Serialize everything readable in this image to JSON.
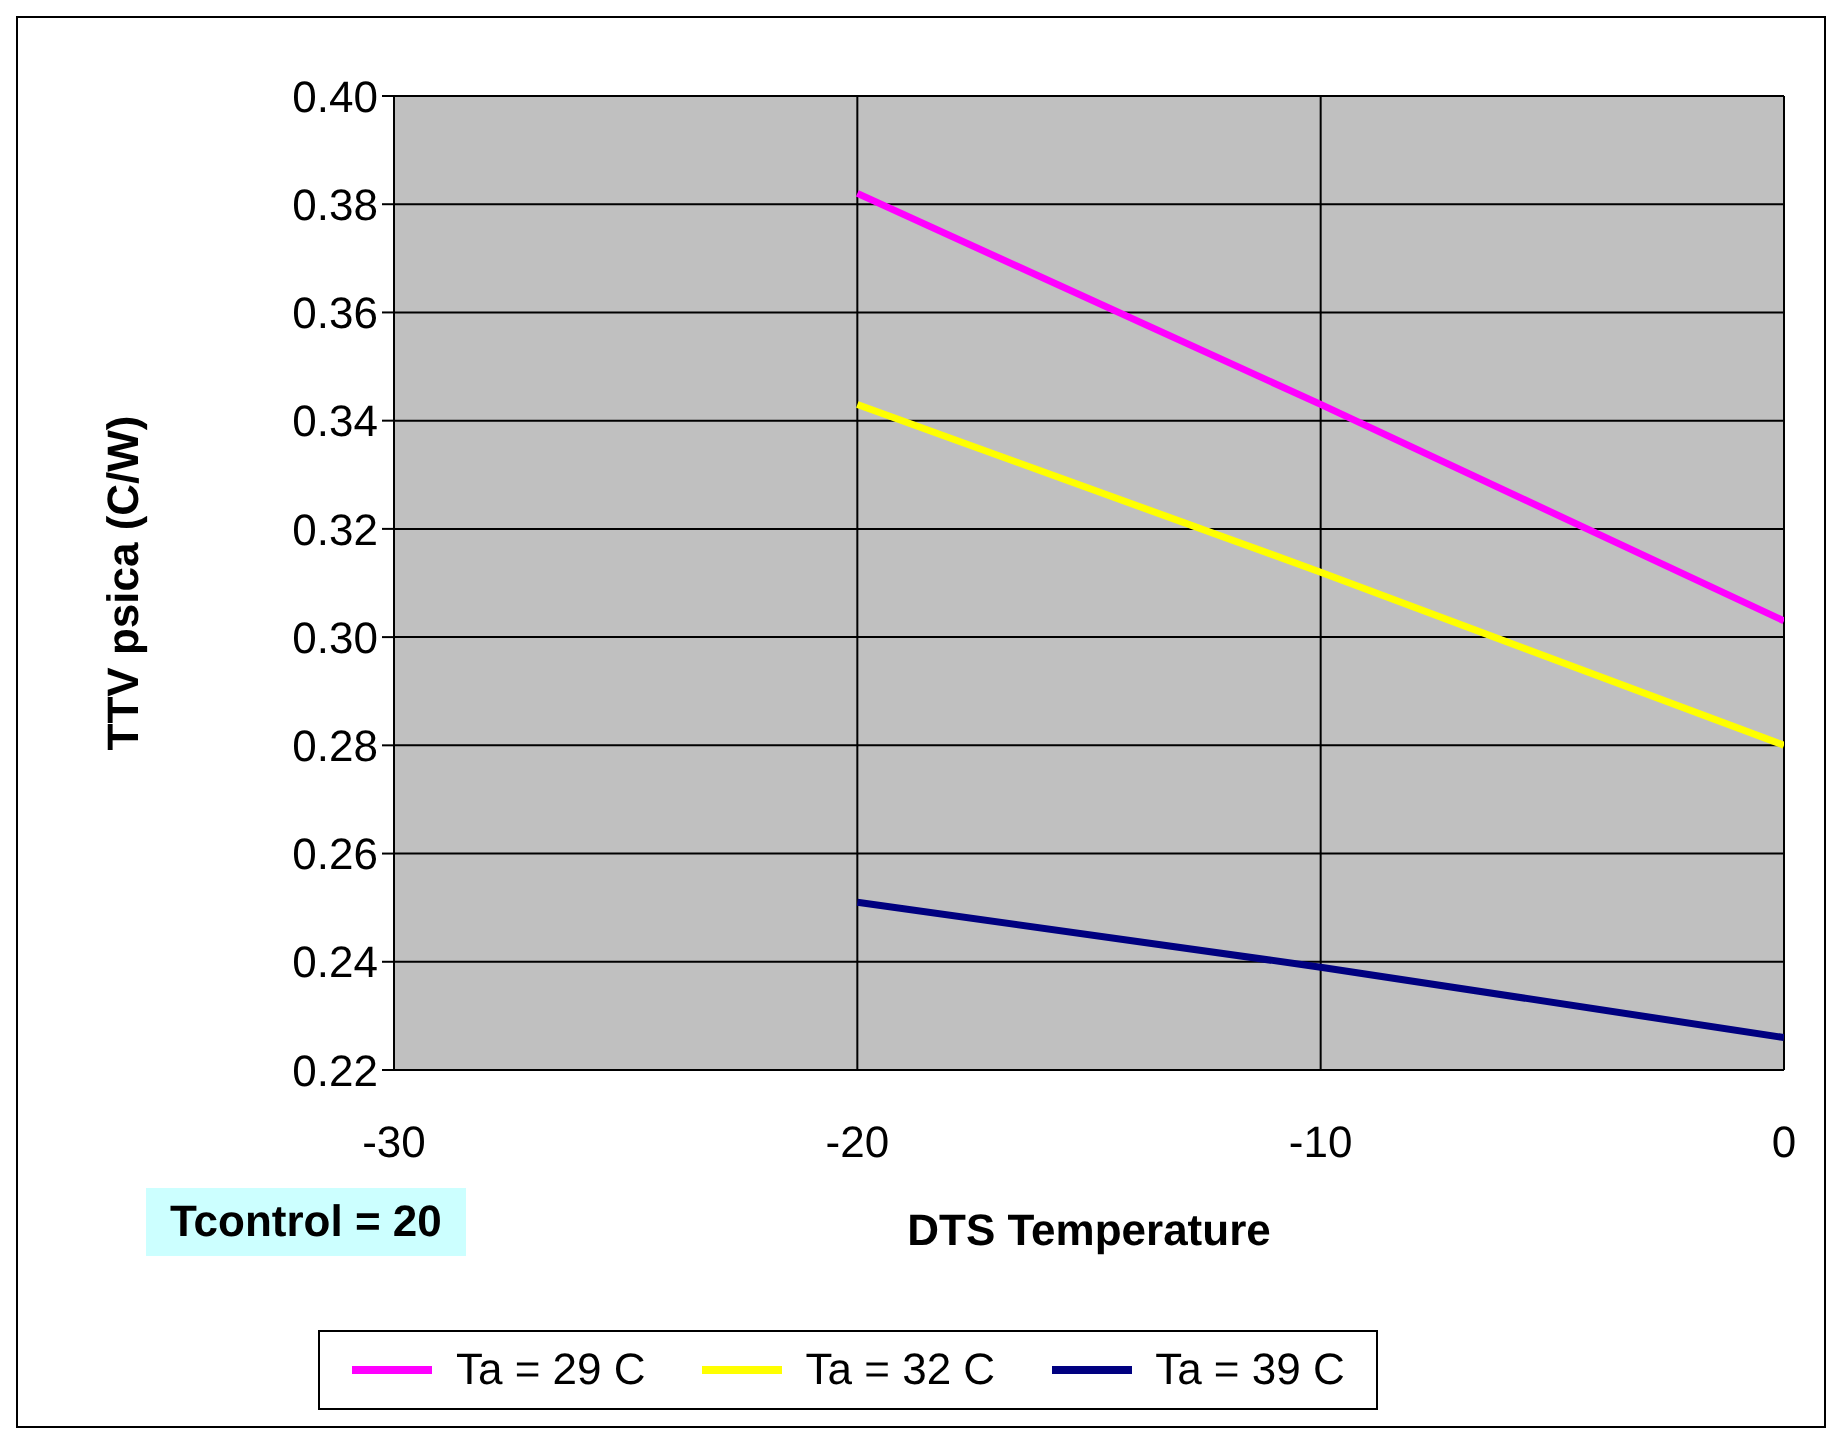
{
  "chart_data": {
    "type": "line",
    "xlabel": "DTS Temperature",
    "ylabel": "TTV psica (C/W)",
    "x": [
      -20,
      -10,
      0
    ],
    "series": [
      {
        "name": "Ta = 29 C",
        "color": "#ff00ff",
        "values": [
          0.382,
          0.343,
          0.303
        ]
      },
      {
        "name": "Ta = 32 C",
        "color": "#ffff00",
        "values": [
          0.343,
          0.312,
          0.28
        ]
      },
      {
        "name": "Ta = 39 C",
        "color": "#000080",
        "values": [
          0.251,
          0.239,
          0.226
        ]
      }
    ],
    "xlim": [
      -30,
      0
    ],
    "xticks": [
      -30,
      -20,
      -10,
      0
    ],
    "ylim": [
      0.22,
      0.4
    ],
    "yticks": [
      0.22,
      0.24,
      0.26,
      0.28,
      {
        "value": 0.3,
        "label": "0.30"
      },
      0.32,
      0.34,
      0.36,
      0.38,
      {
        "value": 0.4,
        "label": "0.40"
      }
    ],
    "grid": true,
    "legend": "bottom",
    "marker": "none",
    "line_style": "solid",
    "annotations": [
      "Tcontrol = 20"
    ]
  }
}
